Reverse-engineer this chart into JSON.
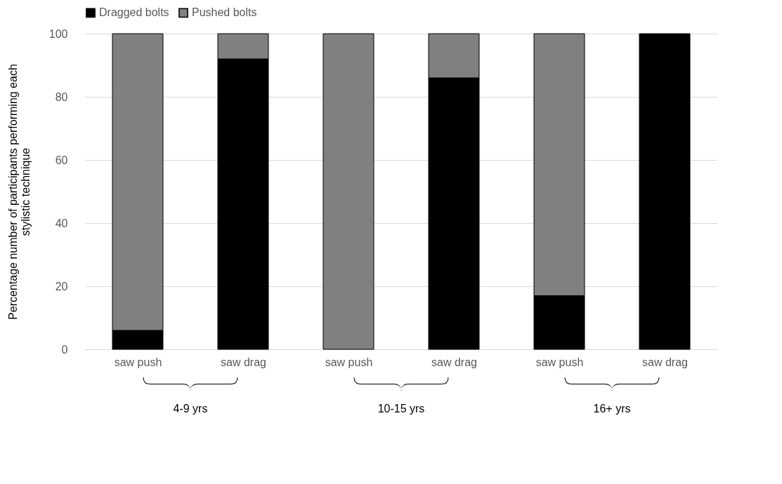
{
  "chart_data": {
    "type": "bar",
    "stacked": true,
    "ylabel": "Percentage number of participants performing each stylistic technique",
    "categories": [
      "saw push",
      "saw drag",
      "saw push",
      "saw drag",
      "saw push",
      "saw drag"
    ],
    "series": [
      {
        "name": "Dragged bolts",
        "color": "#000000",
        "values": [
          6,
          92,
          0,
          86,
          17,
          100
        ]
      },
      {
        "name": "Pushed bolts",
        "color": "#808080",
        "values": [
          94,
          8,
          100,
          14,
          83,
          0
        ]
      }
    ],
    "ylim": [
      0,
      100
    ],
    "yticks": [
      0,
      20,
      40,
      60,
      80,
      100
    ],
    "grid": "y",
    "legend": "top",
    "annotations": [
      "4-9 yrs",
      "10-15 yrs",
      "16+ yrs"
    ]
  }
}
